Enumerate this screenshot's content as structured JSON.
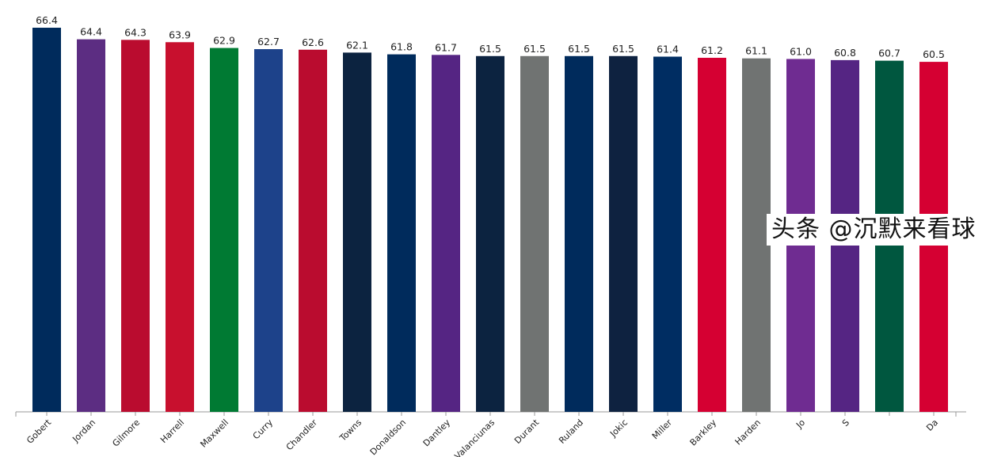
{
  "chart_data": {
    "type": "bar",
    "categories": [
      "Gobert",
      "Jordan",
      "Gilmore",
      "Harrell",
      "Maxwell",
      "Curry",
      "Chandler",
      "Towns",
      "Donaldson",
      "Dantley",
      "Valanciunas",
      "Durant",
      "Ruland",
      "Jokic",
      "Miller",
      "Barkley",
      "Harden",
      "Jo",
      "S",
      "",
      "Da"
    ],
    "values": [
      66.4,
      64.4,
      64.3,
      63.9,
      62.9,
      62.7,
      62.6,
      62.1,
      61.8,
      61.7,
      61.5,
      61.5,
      61.5,
      61.5,
      61.4,
      61.2,
      61.1,
      61.0,
      60.8,
      60.7,
      60.5
    ],
    "value_labels": [
      "66.4",
      "64.4",
      "64.3",
      "63.9",
      "62.9",
      "62.7",
      "62.6",
      "62.1",
      "61.8",
      "61.7",
      "61.5",
      "61.5",
      "61.5",
      "61.5",
      "61.4",
      "61.2",
      "61.1",
      "61.0",
      "60.8",
      "60.7",
      "60.5"
    ],
    "colors": [
      "#002B5C",
      "#5C2D82",
      "#BA0C2F",
      "#C8102E",
      "#007A33",
      "#1D428A",
      "#BA0C2F",
      "#0C2340",
      "#002B5C",
      "#552583",
      "#0C2340",
      "#707372",
      "#002B5C",
      "#0E2240",
      "#002D62",
      "#D50032",
      "#707372",
      "#6F2C91",
      "#552583",
      "#00573F",
      "#D50032"
    ],
    "ylim": [
      0,
      66.4
    ],
    "grid": false,
    "title": "",
    "xlabel": "",
    "ylabel": ""
  },
  "watermark": "头条 @沉默来看球"
}
